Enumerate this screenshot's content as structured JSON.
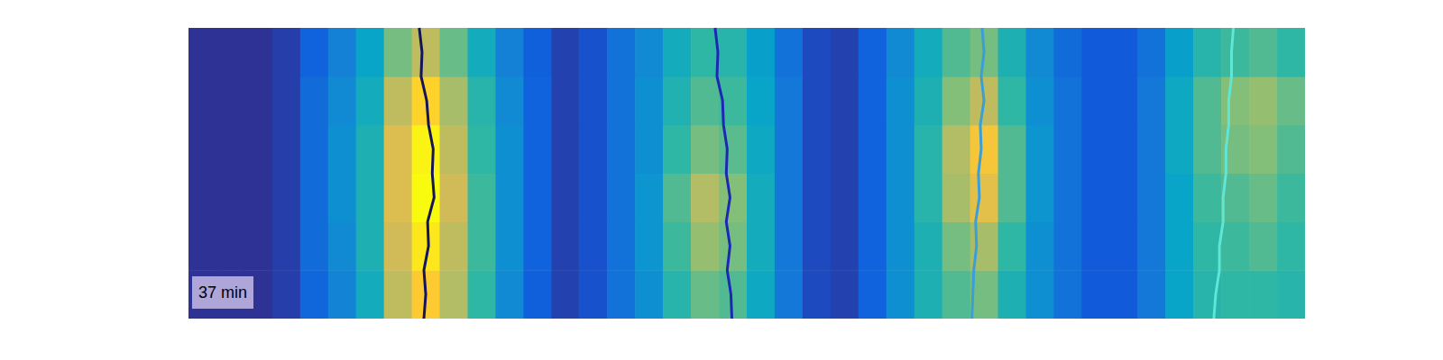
{
  "chart_data": {
    "type": "heatmap",
    "annotation": "37 min",
    "xlim": [
      0,
      1200
    ],
    "ylim": [
      0,
      300
    ],
    "tick_labels": false,
    "grid": false,
    "x_edges": [
      0,
      30,
      60,
      90,
      120,
      150,
      180,
      210,
      240,
      270,
      300,
      330,
      360,
      390,
      420,
      450,
      480,
      510,
      540,
      570,
      600,
      630,
      660,
      690,
      720,
      750,
      780,
      810,
      840,
      870,
      900,
      930,
      960,
      990,
      1020,
      1050,
      1080,
      1110,
      1140,
      1170,
      1200
    ],
    "y_edges": [
      0,
      50,
      100,
      150,
      200,
      250,
      300
    ],
    "color_range": [
      0,
      1
    ],
    "cells": [
      [
        0.02,
        0.02,
        0.02,
        0.05,
        0.16,
        0.26,
        0.42,
        0.72,
        0.88,
        0.7,
        0.5,
        0.28,
        0.14,
        0.06,
        0.1,
        0.2,
        0.3,
        0.48,
        0.58,
        0.55,
        0.4,
        0.22,
        0.08,
        0.06,
        0.15,
        0.3,
        0.45,
        0.55,
        0.6,
        0.45,
        0.3,
        0.2,
        0.12,
        0.12,
        0.22,
        0.38,
        0.48,
        0.5,
        0.5,
        0.48
      ],
      [
        0.02,
        0.02,
        0.02,
        0.05,
        0.18,
        0.28,
        0.45,
        0.75,
        0.95,
        0.72,
        0.52,
        0.3,
        0.15,
        0.06,
        0.1,
        0.2,
        0.32,
        0.52,
        0.65,
        0.6,
        0.42,
        0.22,
        0.08,
        0.06,
        0.15,
        0.3,
        0.45,
        0.6,
        0.68,
        0.5,
        0.3,
        0.2,
        0.12,
        0.12,
        0.22,
        0.38,
        0.5,
        0.52,
        0.55,
        0.5
      ],
      [
        0.02,
        0.02,
        0.02,
        0.05,
        0.18,
        0.3,
        0.45,
        0.78,
        1.0,
        0.75,
        0.52,
        0.3,
        0.15,
        0.06,
        0.1,
        0.2,
        0.32,
        0.55,
        0.7,
        0.62,
        0.42,
        0.22,
        0.08,
        0.06,
        0.15,
        0.3,
        0.48,
        0.68,
        0.8,
        0.55,
        0.32,
        0.2,
        0.12,
        0.12,
        0.22,
        0.38,
        0.52,
        0.55,
        0.58,
        0.52
      ],
      [
        0.02,
        0.02,
        0.02,
        0.05,
        0.18,
        0.3,
        0.45,
        0.78,
        0.98,
        0.72,
        0.5,
        0.3,
        0.15,
        0.06,
        0.1,
        0.2,
        0.3,
        0.5,
        0.6,
        0.56,
        0.4,
        0.22,
        0.08,
        0.06,
        0.15,
        0.3,
        0.48,
        0.7,
        0.85,
        0.55,
        0.32,
        0.2,
        0.12,
        0.12,
        0.22,
        0.4,
        0.55,
        0.6,
        0.62,
        0.55
      ],
      [
        0.02,
        0.02,
        0.02,
        0.05,
        0.18,
        0.28,
        0.42,
        0.72,
        0.9,
        0.68,
        0.48,
        0.28,
        0.15,
        0.06,
        0.1,
        0.2,
        0.3,
        0.46,
        0.55,
        0.52,
        0.38,
        0.22,
        0.08,
        0.06,
        0.15,
        0.3,
        0.45,
        0.62,
        0.72,
        0.5,
        0.3,
        0.2,
        0.12,
        0.12,
        0.22,
        0.4,
        0.55,
        0.62,
        0.65,
        0.58
      ],
      [
        0.02,
        0.02,
        0.02,
        0.05,
        0.15,
        0.25,
        0.38,
        0.6,
        0.72,
        0.58,
        0.42,
        0.25,
        0.14,
        0.06,
        0.1,
        0.2,
        0.28,
        0.42,
        0.5,
        0.48,
        0.36,
        0.2,
        0.08,
        0.06,
        0.15,
        0.28,
        0.42,
        0.55,
        0.6,
        0.45,
        0.28,
        0.18,
        0.12,
        0.12,
        0.2,
        0.36,
        0.48,
        0.52,
        0.55,
        0.5
      ]
    ],
    "series": [
      {
        "type": "line",
        "color": "#14145a",
        "x": [
          248,
          251,
          250,
          256,
          258,
          263,
          262,
          264,
          257,
          258,
          253,
          255,
          253
        ],
        "y": [
          300,
          275,
          250,
          225,
          200,
          175,
          150,
          125,
          100,
          75,
          50,
          25,
          0
        ]
      },
      {
        "type": "line",
        "color": "#1c28b4",
        "x": [
          566,
          569,
          568,
          574,
          575,
          579,
          578,
          582,
          578,
          582,
          579,
          583,
          584
        ],
        "y": [
          300,
          275,
          250,
          225,
          200,
          175,
          150,
          125,
          100,
          75,
          50,
          25,
          0
        ]
      },
      {
        "type": "line",
        "color": "#3a9fd6",
        "x": [
          853,
          855,
          852,
          855,
          851,
          852,
          849,
          850,
          846,
          847,
          844,
          843,
          842
        ],
        "y": [
          300,
          275,
          250,
          225,
          200,
          175,
          150,
          125,
          100,
          75,
          50,
          25,
          0
        ]
      },
      {
        "type": "line",
        "color": "#5ee6d6",
        "x": [
          1123,
          1121,
          1121,
          1118,
          1118,
          1115,
          1115,
          1112,
          1112,
          1108,
          1108,
          1104,
          1102
        ],
        "y": [
          300,
          275,
          250,
          225,
          200,
          175,
          150,
          125,
          100,
          75,
          50,
          25,
          0
        ]
      }
    ]
  }
}
